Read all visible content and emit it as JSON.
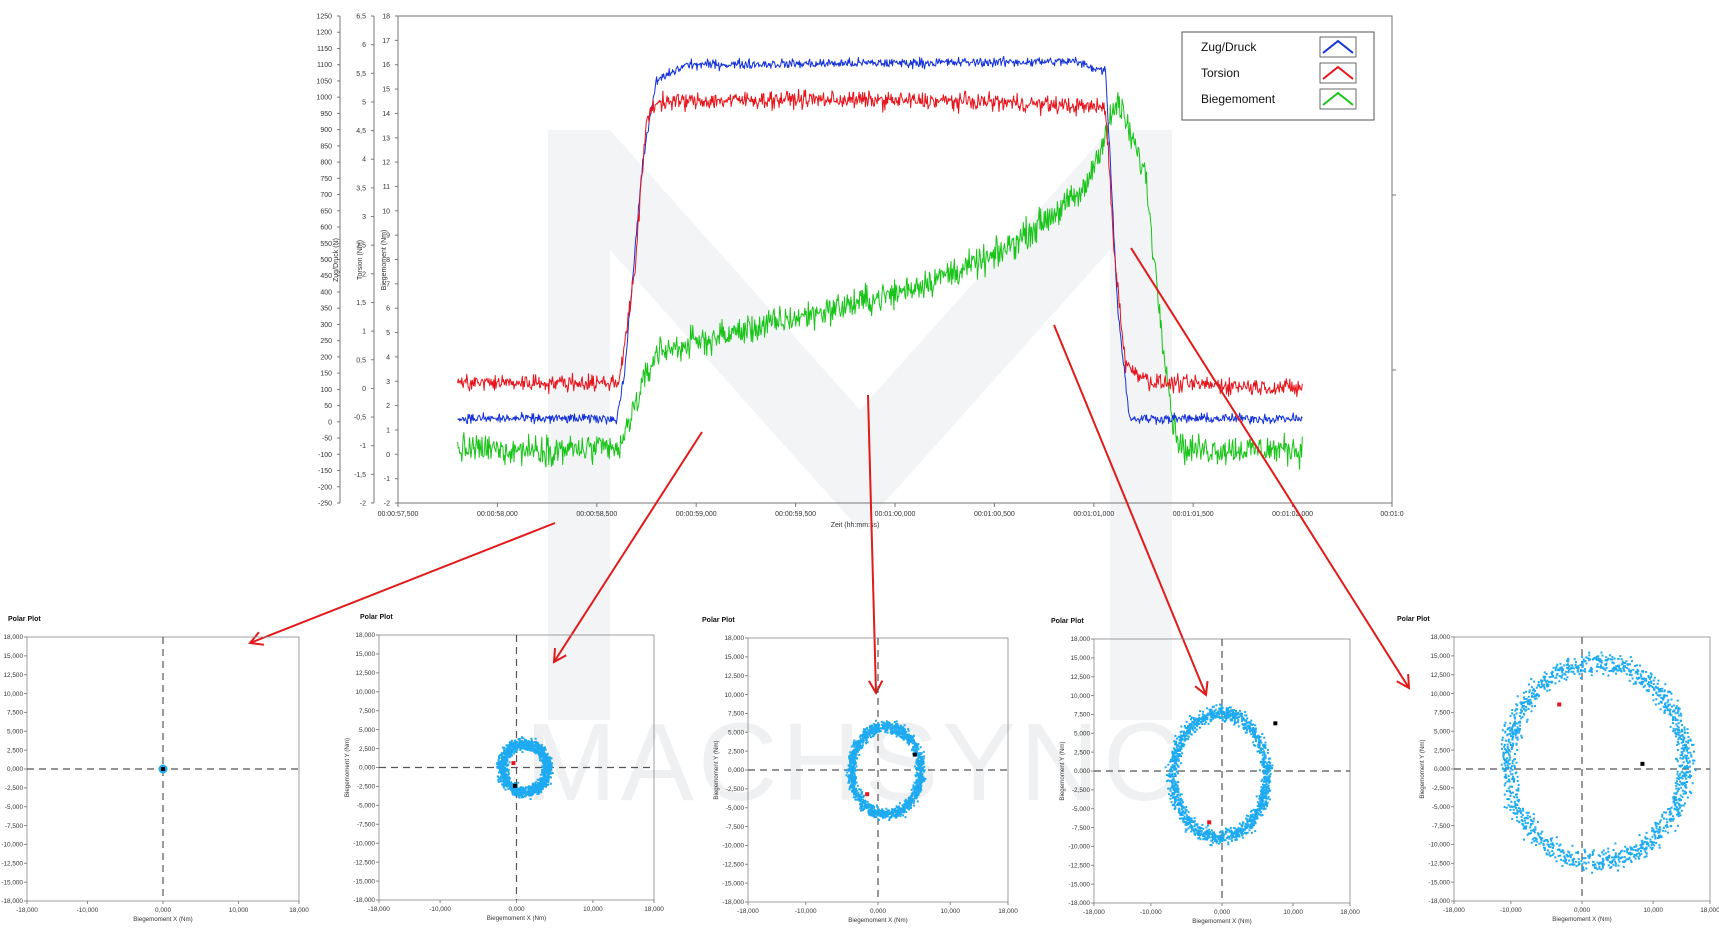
{
  "chart_data": [
    {
      "type": "line",
      "xlabel": "Zeit (hh:mm:ss)",
      "x_ticks": [
        "00:00:57,500",
        "00:00:58,000",
        "00:00:58,500",
        "00:00:59,000",
        "00:00:59,500",
        "00:01:00,000",
        "00:01:00,500",
        "00:01:01,000",
        "00:01:01,500",
        "00:01:02,000",
        "00:01:0"
      ],
      "xlim": [
        57.5,
        62.5
      ],
      "axes": [
        {
          "label": "Zug/Druck (N)",
          "lim": [
            -250,
            1250
          ],
          "ticks": [
            "1250",
            "1200",
            "1150",
            "1100",
            "1050",
            "1000",
            "950",
            "900",
            "850",
            "800",
            "750",
            "700",
            "650",
            "600",
            "550",
            "500",
            "450",
            "400",
            "350",
            "300",
            "250",
            "200",
            "150",
            "100",
            "50",
            "0",
            "-50",
            "-100",
            "-150",
            "-200",
            "-250"
          ]
        },
        {
          "label": "Torsion (Nm)",
          "lim": [
            -2,
            6.5
          ],
          "ticks": [
            "6,5",
            "6",
            "5,5",
            "5",
            "4,5",
            "4",
            "3,5",
            "3",
            "2,5",
            "2",
            "1,5",
            "1",
            "0,5",
            "0",
            "-0,5",
            "-1",
            "-1,5",
            "-2"
          ]
        },
        {
          "label": "Biegemoment (Nm)",
          "lim": [
            -2,
            18
          ],
          "ticks": [
            "18",
            "17",
            "16",
            "15",
            "14",
            "13",
            "12",
            "11",
            "10",
            "9",
            "8",
            "7",
            "6",
            "5",
            "4",
            "3",
            "2",
            "1",
            "0",
            "-1",
            "-2"
          ]
        }
      ],
      "series": [
        {
          "name": "Zug/Druck",
          "color": "#1533d8",
          "axis": "Zug/Druck (N)",
          "noise": 22,
          "points": [
            [
              57.8,
              10
            ],
            [
              58.6,
              10
            ],
            [
              58.64,
              150
            ],
            [
              58.73,
              800
            ],
            [
              58.8,
              1050
            ],
            [
              58.95,
              1100
            ],
            [
              60.9,
              1110
            ],
            [
              61.06,
              1080
            ],
            [
              61.12,
              350
            ],
            [
              61.18,
              10
            ],
            [
              62.05,
              10
            ]
          ]
        },
        {
          "name": "Torsion",
          "color": "#e8141c",
          "axis": "Torsion (Nm)",
          "noise": 0.22,
          "points": [
            [
              57.8,
              0.1
            ],
            [
              58.61,
              0.1
            ],
            [
              58.69,
              2.0
            ],
            [
              58.75,
              4.7
            ],
            [
              58.8,
              5.0
            ],
            [
              59.5,
              5.05
            ],
            [
              60.5,
              5.0
            ],
            [
              61.06,
              4.9
            ],
            [
              61.1,
              2.5
            ],
            [
              61.16,
              0.4
            ],
            [
              61.3,
              0.1
            ],
            [
              62.05,
              0.0
            ]
          ]
        },
        {
          "name": "Biegemoment",
          "color": "#19c419",
          "axis": "Biegemoment (Nm)",
          "noise": 0.9,
          "points": [
            [
              57.8,
              0.2
            ],
            [
              58.62,
              0.2
            ],
            [
              58.68,
              1.8
            ],
            [
              58.8,
              4.2
            ],
            [
              59.4,
              5.4
            ],
            [
              60.0,
              6.6
            ],
            [
              60.5,
              8.1
            ],
            [
              60.95,
              10.8
            ],
            [
              61.12,
              14.5
            ],
            [
              61.26,
              11.5
            ],
            [
              61.33,
              6.0
            ],
            [
              61.4,
              1.2
            ],
            [
              61.45,
              0.2
            ],
            [
              62.05,
              0.2
            ]
          ]
        }
      ],
      "legend": {
        "position": "top-right",
        "entries": [
          "Zug/Druck",
          "Torsion",
          "Biegemoment"
        ]
      }
    },
    {
      "type": "scatter",
      "title": "Polar Plot",
      "xlabel": "Biegemoment X (Nm)",
      "ylabel": "Biegemoment Y (Nm)",
      "xlim": [
        -18000,
        18000
      ],
      "ylim": [
        -18000,
        18000
      ],
      "shape": "dot",
      "rx": 120,
      "ry": 120,
      "spread": 80,
      "cx": 0,
      "cy": 0
    },
    {
      "type": "scatter",
      "title": "Polar Plot",
      "xlabel": "Biegemoment X (Nm)",
      "ylabel": "Biegemoment Y (Nm)",
      "xlim": [
        -18000,
        18000
      ],
      "ylim": [
        -18000,
        18000
      ],
      "shape": "ring",
      "rx": 3000,
      "ry": 3300,
      "spread": 1000,
      "cx": 1000,
      "cy": 0
    },
    {
      "type": "scatter",
      "title": "Polar Plot",
      "xlabel": "Biegemoment X (Nm)",
      "ylabel": "Biegemoment Y (Nm)",
      "xlim": [
        -18000,
        18000
      ],
      "ylim": [
        -18000,
        18000
      ],
      "shape": "ring",
      "rx": 4800,
      "ry": 6000,
      "spread": 900,
      "cx": 1000,
      "cy": 0
    },
    {
      "type": "scatter",
      "title": "Polar Plot",
      "xlabel": "Biegemoment X (Nm)",
      "ylabel": "Biegemoment Y (Nm)",
      "xlim": [
        -18000,
        18000
      ],
      "ylim": [
        -18000,
        18000
      ],
      "shape": "ring",
      "rx": 6600,
      "ry": 8500,
      "spread": 1100,
      "cx": -400,
      "cy": -500
    },
    {
      "type": "scatter",
      "title": "Polar Plot",
      "xlabel": "Biegemoment X (Nm)",
      "ylabel": "Biegemoment Y (Nm)",
      "xlim": [
        -18000,
        18000
      ],
      "ylim": [
        -18000,
        18000
      ],
      "shape": "ring",
      "rx": 12500,
      "ry": 13500,
      "spread": 1800,
      "cx": 2000,
      "cy": 1000
    }
  ],
  "polar_ticks": [
    "18,000",
    "15,000",
    "12,500",
    "10,000",
    "7,500",
    "5,000",
    "2,500",
    "0,000",
    "-2,500",
    "-5,000",
    "-7,500",
    "-10,000",
    "-12,500",
    "-15,000",
    "-18,000"
  ],
  "polar_xticks": [
    "-18,000",
    "-10,000",
    "0,000",
    "10,000",
    "18,000"
  ],
  "watermark": "MACHSYNC"
}
